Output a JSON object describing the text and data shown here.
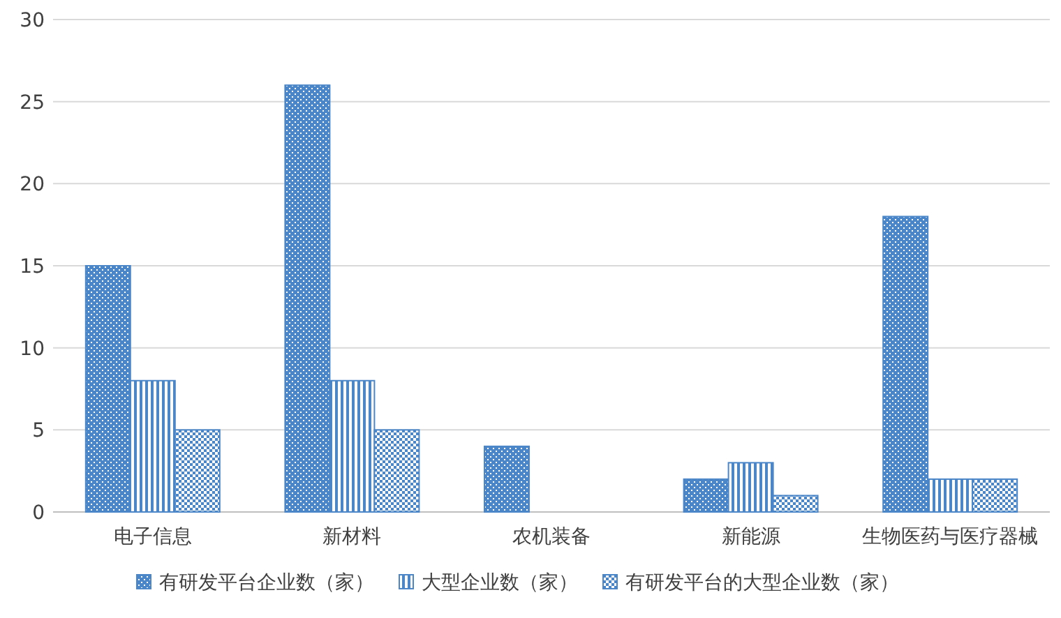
{
  "chart_data": {
    "type": "bar",
    "categories": [
      "电子信息",
      "新材料",
      "农机装备",
      "新能源",
      "生物医药与医疗器械"
    ],
    "series": [
      {
        "name": "有研发平台企业数（家）",
        "color": "#4a86c8",
        "values": [
          15,
          26,
          4,
          2,
          18
        ]
      },
      {
        "name": "大型企业数（家）",
        "color": "#4a86c8",
        "values": [
          8,
          8,
          0,
          3,
          2
        ]
      },
      {
        "name": "有研发平台的大型企业数（家）",
        "color": "#4a86c8",
        "values": [
          5,
          5,
          0,
          1,
          2
        ]
      }
    ],
    "ylim": [
      0,
      30
    ],
    "yticks": [
      0,
      5,
      10,
      15,
      20,
      25,
      30
    ],
    "grid": "y",
    "legend": "bottom"
  }
}
